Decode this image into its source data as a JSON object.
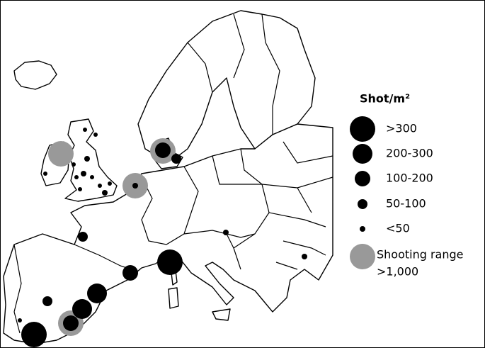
{
  "legend": {
    "title": "Shot/m²",
    "items": [
      ">300",
      "200-300",
      "100-200",
      "50-100",
      "<50"
    ],
    "shooting_range": [
      "Shooting range",
      ">1,000"
    ]
  }
}
